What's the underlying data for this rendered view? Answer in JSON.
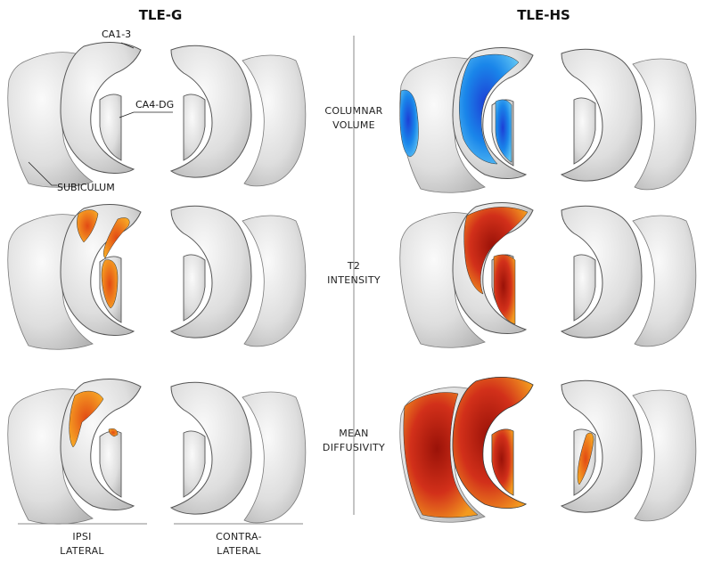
{
  "groups": {
    "left_title": "TLE-G",
    "right_title": "TLE-HS"
  },
  "anatomy_labels": {
    "ca13": "CA1-3",
    "ca4dg": "CA4-DG",
    "subiculum": "SUBICULUM"
  },
  "measures": [
    {
      "line1": "COLUMNAR",
      "line2": "VOLUME"
    },
    {
      "line1": "T2",
      "line2": "INTENSITY"
    },
    {
      "line1": "MEAN",
      "line2": "DIFFUSIVITY"
    }
  ],
  "sides": {
    "ipsi_line1": "IPSI",
    "ipsi_line2": "LATERAL",
    "contra_line1": "CONTRA-",
    "contra_line2": "LATERAL"
  },
  "colors": {
    "surface": "#e2e2e2",
    "volume_decrease": "#1e8fe8",
    "t2_increase": "#e2401a",
    "md_increase": "#c92a12",
    "orange": "#f28a1c"
  }
}
